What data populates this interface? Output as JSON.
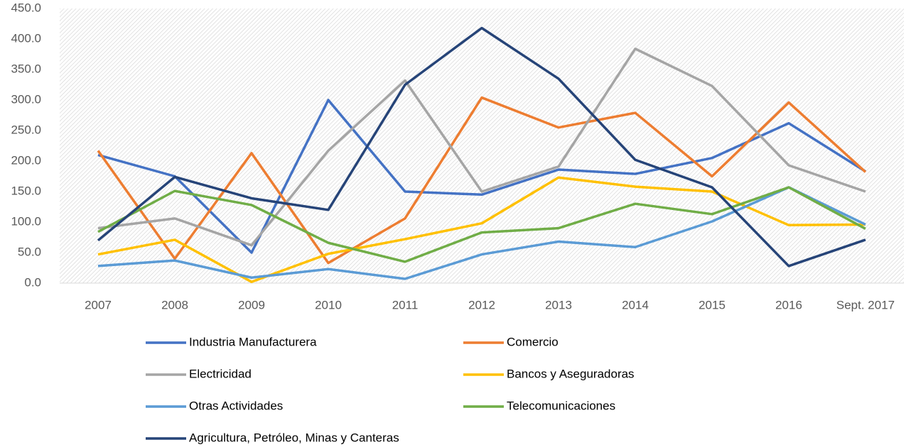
{
  "chart_data": {
    "type": "line",
    "categories": [
      "2007",
      "2008",
      "2009",
      "2010",
      "2011",
      "2012",
      "2013",
      "2014",
      "2015",
      "2016",
      "Sept. 2017"
    ],
    "series": [
      {
        "name": "Industria Manufacturera",
        "color": "#4472c4",
        "values": [
          210,
          175,
          50,
          300,
          150,
          145,
          186,
          179,
          205,
          262,
          183
        ]
      },
      {
        "name": "Comercio",
        "color": "#ed7d31",
        "values": [
          217,
          40,
          213,
          33,
          106,
          304,
          255,
          279,
          175,
          296,
          182
        ]
      },
      {
        "name": "Electricidad",
        "color": "#a5a5a5",
        "values": [
          90,
          106,
          62,
          217,
          332,
          150,
          191,
          384,
          323,
          193,
          150
        ]
      },
      {
        "name": "Bancos y Aseguradoras",
        "color": "#ffc000",
        "values": [
          47,
          71,
          2,
          48,
          72,
          98,
          173,
          158,
          150,
          95,
          96
        ]
      },
      {
        "name": "Otras Actividades",
        "color": "#5b9bd5",
        "values": [
          28,
          37,
          9,
          23,
          7,
          47,
          68,
          59,
          101,
          157,
          96
        ]
      },
      {
        "name": "Telecomunicaciones",
        "color": "#70ad47",
        "values": [
          84,
          151,
          128,
          66,
          35,
          83,
          90,
          130,
          113,
          157,
          89
        ]
      },
      {
        "name": "Agricultura, Petróleo, Minas y Canteras",
        "color": "#264478",
        "values": [
          70,
          174,
          139,
          120,
          325,
          418,
          335,
          202,
          157,
          28,
          71
        ]
      }
    ],
    "ylim": [
      0,
      450
    ],
    "yticks": [
      {
        "value": 0,
        "label": "0.0"
      },
      {
        "value": 50,
        "label": "50.0"
      },
      {
        "value": 100,
        "label": "100.0"
      },
      {
        "value": 150,
        "label": "150.0"
      },
      {
        "value": 200,
        "label": "200.0"
      },
      {
        "value": 250,
        "label": "250.0"
      },
      {
        "value": 300,
        "label": "300.0"
      },
      {
        "value": 350,
        "label": "350.0"
      },
      {
        "value": 400,
        "label": "400.0"
      },
      {
        "value": 450,
        "label": "450.0"
      }
    ],
    "grid": false
  }
}
